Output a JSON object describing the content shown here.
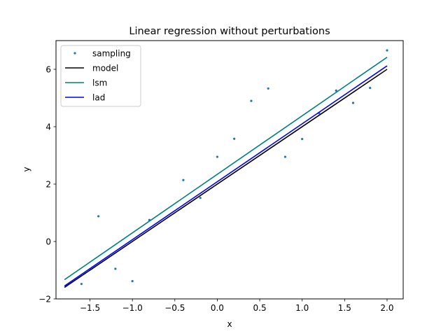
{
  "chart_data": {
    "type": "line",
    "title": "Linear regression without perturbations",
    "xlabel": "x",
    "ylabel": "y",
    "xlim": [
      -1.9,
      2.19
    ],
    "ylim": [
      -2.0,
      7.0
    ],
    "xticks": [
      -1.5,
      -1.0,
      -0.5,
      0.0,
      0.5,
      1.0,
      1.5,
      2.0
    ],
    "xtick_labels": [
      "−1.5",
      "−1.0",
      "−0.5",
      "0.0",
      "0.5",
      "1.0",
      "1.5",
      "2.0"
    ],
    "yticks": [
      -2,
      0,
      2,
      4,
      6
    ],
    "ytick_labels": [
      "−2",
      "0",
      "2",
      "4",
      "6"
    ],
    "grid": false,
    "legend_position": "top-left",
    "series": [
      {
        "name": "sampling",
        "kind": "scatter",
        "color": "#1f77b4",
        "x": [
          -1.6,
          -1.4,
          -1.2,
          -1.0,
          -0.8,
          -0.4,
          -0.2,
          0.0,
          0.2,
          0.4,
          0.6,
          0.8,
          1.0,
          1.2,
          1.4,
          1.6,
          1.8,
          2.0
        ],
        "y": [
          -1.48,
          0.88,
          -0.95,
          -1.38,
          0.75,
          2.14,
          1.52,
          2.95,
          3.58,
          4.9,
          5.33,
          2.95,
          3.57,
          4.47,
          5.26,
          4.83,
          5.35,
          6.66
        ]
      },
      {
        "name": "model",
        "kind": "line",
        "color": "#000000",
        "x": [
          -1.8,
          2.0
        ],
        "y": [
          -1.6,
          6.0
        ]
      },
      {
        "name": "lsm",
        "kind": "line",
        "color": "#008080",
        "x": [
          -1.8,
          2.0
        ],
        "y": [
          -1.33,
          6.42
        ]
      },
      {
        "name": "lad",
        "kind": "line",
        "color": "#0000ff",
        "x": [
          -1.8,
          2.0
        ],
        "y": [
          -1.55,
          6.12
        ]
      }
    ]
  }
}
